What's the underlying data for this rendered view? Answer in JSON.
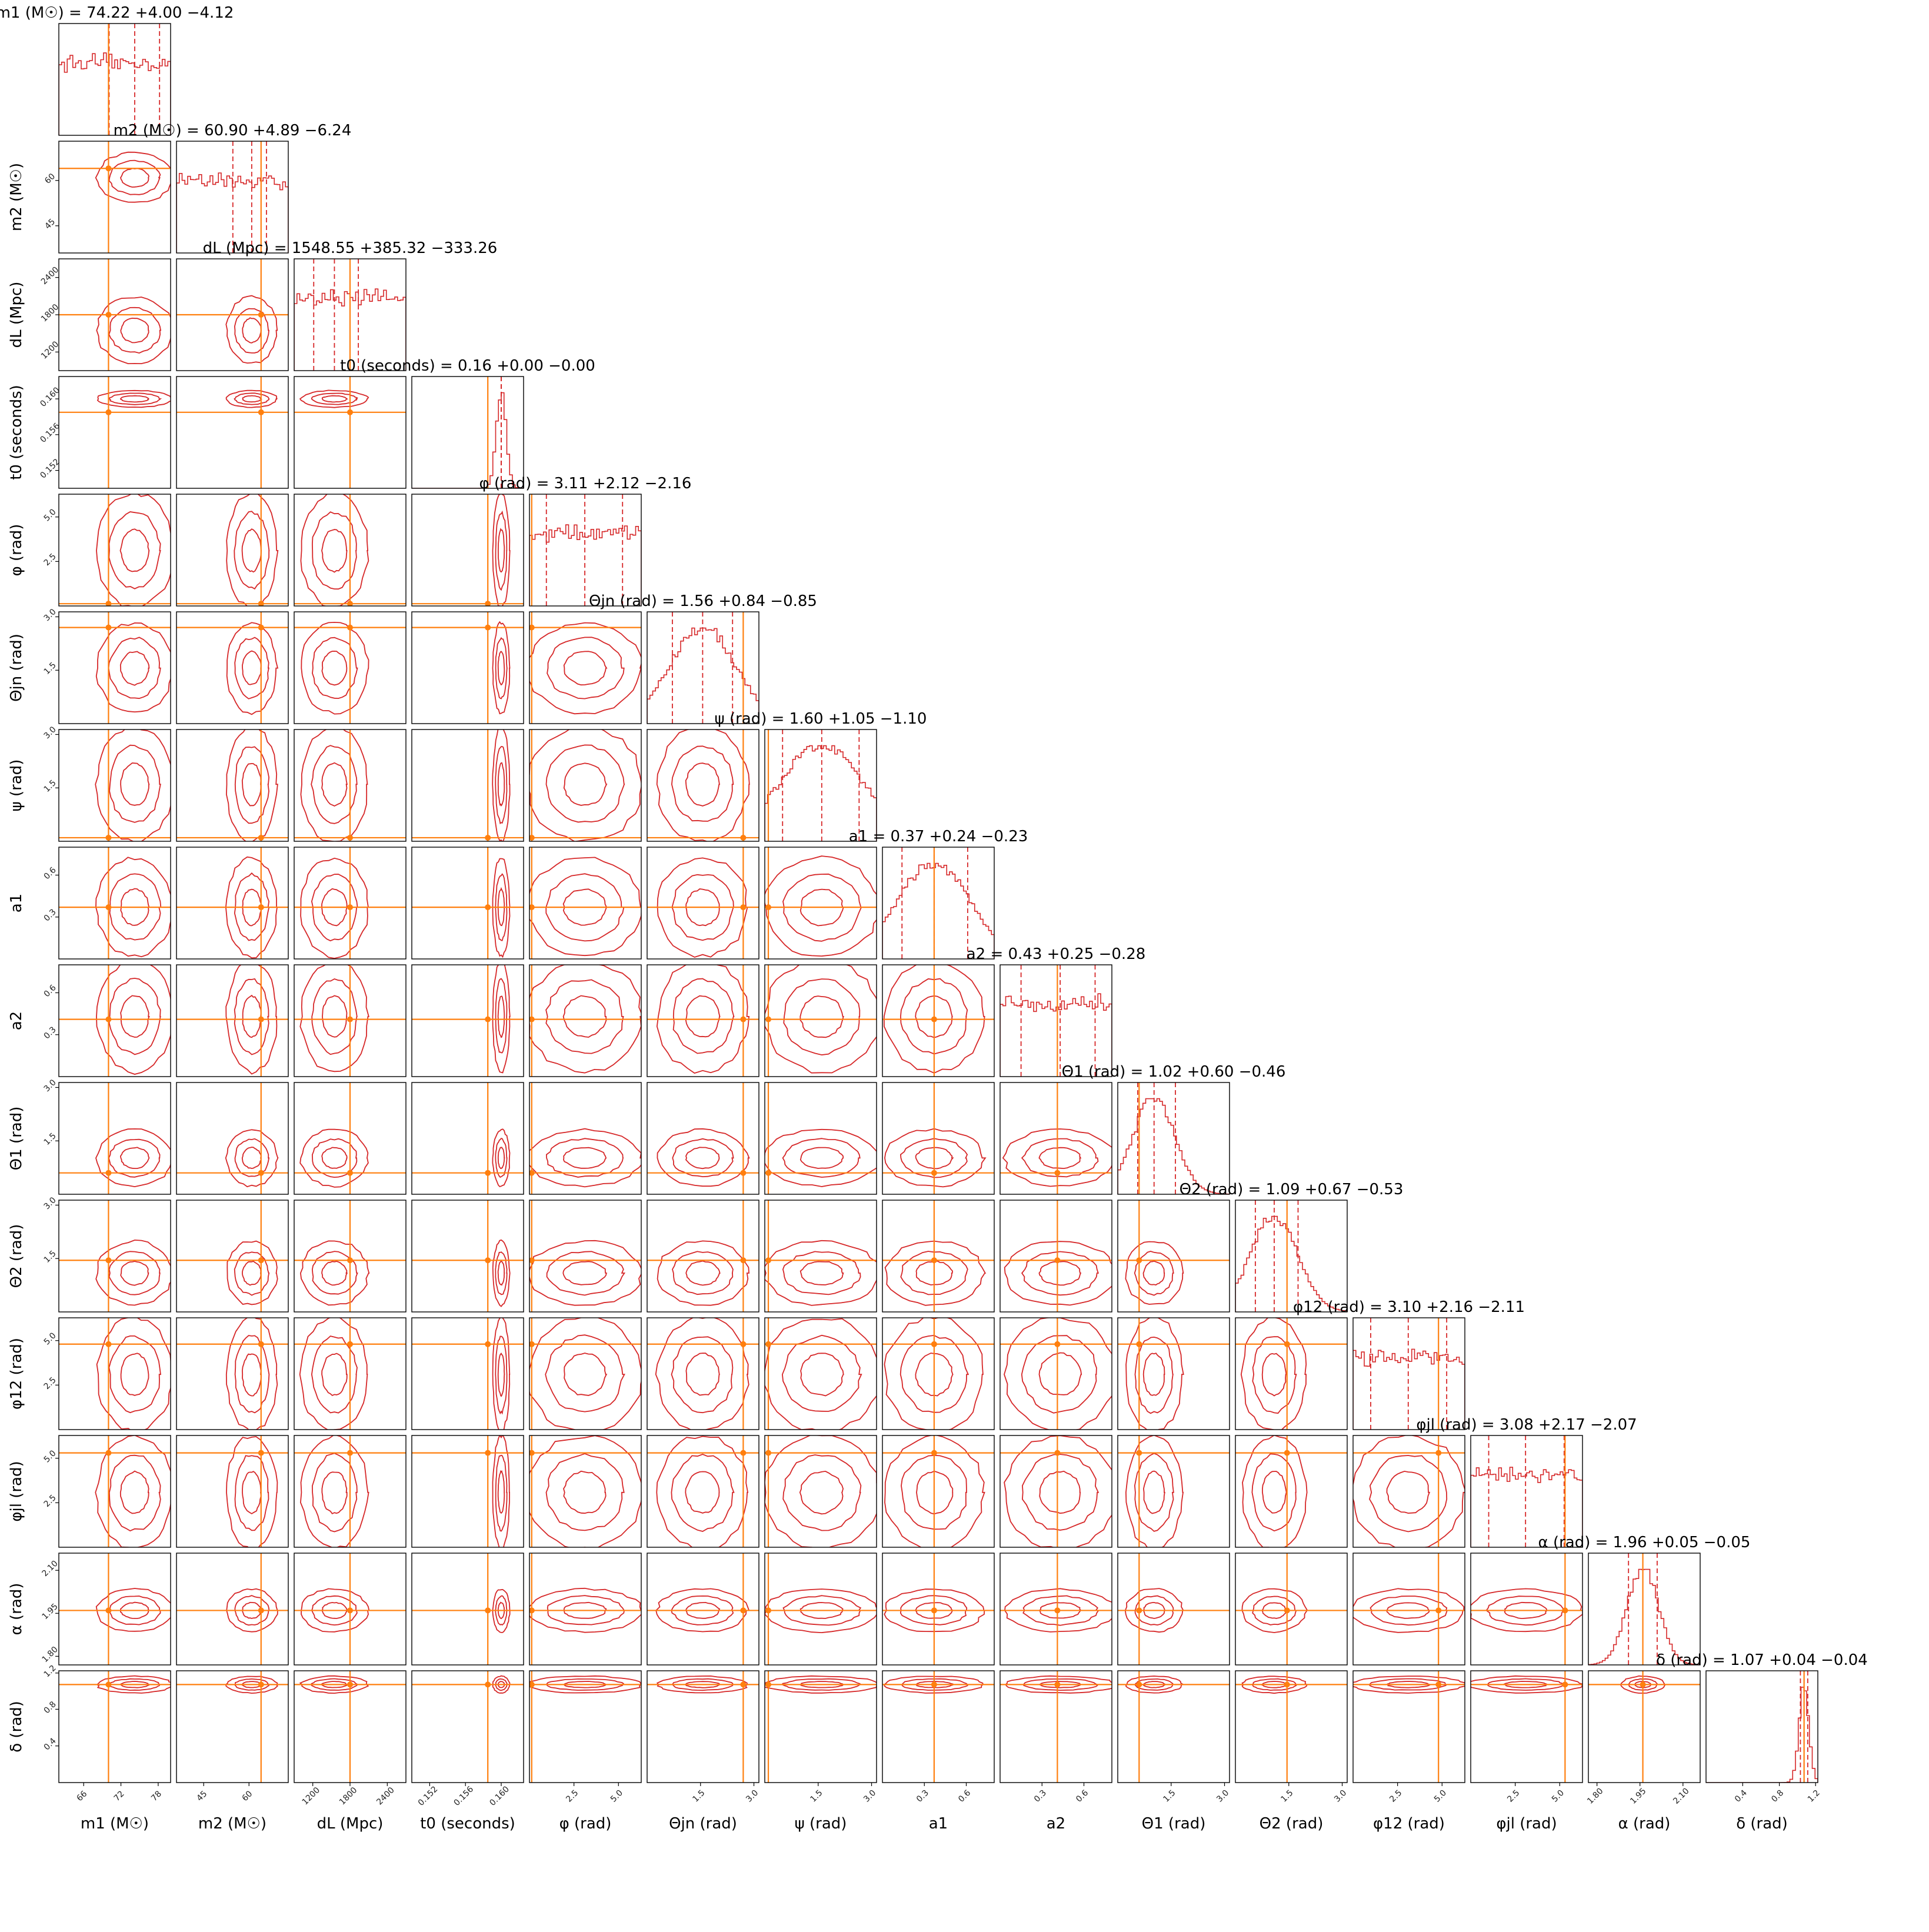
{
  "chart_data": {
    "type": "corner",
    "colors": {
      "contour": "#d62728",
      "truth": "#ff7f0e",
      "frame": "#000000"
    },
    "params": [
      {
        "key": "m1",
        "label": "m1 (M☉)",
        "median": 74.22,
        "plus": 4.0,
        "minus": 4.12,
        "title": "m1 (M☉) = 74.22 +4.00 −4.12",
        "ticks": [
          "66",
          "72",
          "78"
        ],
        "range": [
          62,
          80
        ],
        "truth": 70.0
      },
      {
        "key": "m2",
        "label": "m2 (M☉)",
        "median": 60.9,
        "plus": 4.89,
        "minus": 6.24,
        "title": "m2 (M☉) = 60.90 +4.89 −6.24",
        "ticks": [
          "45",
          "60"
        ],
        "range": [
          36,
          73
        ],
        "truth": 64.0
      },
      {
        "key": "dL",
        "label": "dL (Mpc)",
        "median": 1548.55,
        "plus": 385.32,
        "minus": 333.26,
        "title": "dL (Mpc) = 1548.55 +385.32 −333.26",
        "ticks": [
          "1200",
          "1800",
          "2400"
        ],
        "range": [
          900,
          2700
        ],
        "truth": 1800
      },
      {
        "key": "t0",
        "label": "t0 (seconds)",
        "median": 0.16,
        "plus": 0.0,
        "minus": 0.0,
        "title": "t0 (seconds) = 0.16 +0.00 −0.00",
        "ticks": [
          "0.152",
          "0.156",
          "0.160"
        ],
        "range": [
          0.15,
          0.1625
        ],
        "truth": 0.1585
      },
      {
        "key": "phi",
        "label": "φ (rad)",
        "median": 3.11,
        "plus": 2.12,
        "minus": 2.16,
        "title": "φ (rad) = 3.11 +2.12 −2.16",
        "ticks": [
          "2.5",
          "5.0"
        ],
        "range": [
          0,
          6.28
        ],
        "truth": 0.0
      },
      {
        "key": "thetajn",
        "label": "Θjn (rad)",
        "median": 1.56,
        "plus": 0.84,
        "minus": 0.85,
        "title": "Θjn (rad) = 1.56 +0.84 −0.85",
        "ticks": [
          "1.5",
          "3.0"
        ],
        "range": [
          0,
          3.14
        ],
        "truth": 2.7
      },
      {
        "key": "psi",
        "label": "ψ (rad)",
        "median": 1.6,
        "plus": 1.05,
        "minus": 1.1,
        "title": "ψ (rad) = 1.60 +1.05 −1.10",
        "ticks": [
          "1.5",
          "3.0"
        ],
        "range": [
          0,
          3.14
        ],
        "truth": 0.1
      },
      {
        "key": "a1",
        "label": "a1",
        "median": 0.37,
        "plus": 0.24,
        "minus": 0.23,
        "title": "a1 = 0.37 +0.24 −0.23",
        "ticks": [
          "0.3",
          "0.6"
        ],
        "range": [
          0,
          0.8
        ],
        "truth": 0.37
      },
      {
        "key": "a2",
        "label": "a2",
        "median": 0.43,
        "plus": 0.25,
        "minus": 0.28,
        "title": "a2 = 0.43 +0.25 −0.28",
        "ticks": [
          "0.3",
          "0.6"
        ],
        "range": [
          0,
          0.8
        ],
        "truth": 0.41
      },
      {
        "key": "theta1",
        "label": "Θ1 (rad)",
        "median": 1.02,
        "plus": 0.6,
        "minus": 0.46,
        "title": "Θ1 (rad) = 1.02 +0.60 −0.46",
        "ticks": [
          "1.5",
          "3.0"
        ],
        "range": [
          0,
          3.14
        ],
        "truth": 0.6
      },
      {
        "key": "theta2",
        "label": "Θ2 (rad)",
        "median": 1.09,
        "plus": 0.67,
        "minus": 0.53,
        "title": "Θ2 (rad) = 1.09 +0.67 −0.53",
        "ticks": [
          "1.5",
          "3.0"
        ],
        "range": [
          0,
          3.14
        ],
        "truth": 1.45
      },
      {
        "key": "phi12",
        "label": "φ12 (rad)",
        "median": 3.1,
        "plus": 2.16,
        "minus": 2.11,
        "title": "φ12 (rad) = 3.10 +2.16 −2.11",
        "ticks": [
          "2.5",
          "5.0"
        ],
        "range": [
          0,
          6.28
        ],
        "truth": 4.8
      },
      {
        "key": "phijl",
        "label": "φjl (rad)",
        "median": 3.08,
        "plus": 2.17,
        "minus": 2.07,
        "title": "φjl (rad) = 3.08 +2.17 −2.07",
        "ticks": [
          "2.5",
          "5.0"
        ],
        "range": [
          0,
          6.28
        ],
        "truth": 5.3
      },
      {
        "key": "alpha",
        "label": "α (rad)",
        "median": 1.96,
        "plus": 0.05,
        "minus": 0.05,
        "title": "α (rad) = 1.96 +0.05 −0.05",
        "ticks": [
          "1.80",
          "1.95",
          "2.10"
        ],
        "range": [
          1.77,
          2.16
        ],
        "truth": 1.96
      },
      {
        "key": "delta",
        "label": "δ (rad)",
        "median": 1.07,
        "plus": 0.04,
        "minus": 0.04,
        "title": "δ (rad) = 1.07 +0.04 −0.04",
        "ticks": [
          "0.4",
          "0.8",
          "1.2"
        ],
        "range": [
          0,
          1.22
        ],
        "truth": 1.07
      }
    ]
  }
}
